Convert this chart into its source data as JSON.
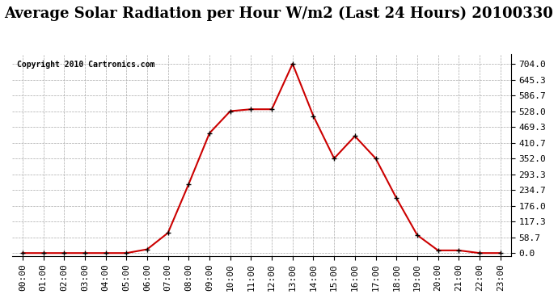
{
  "title": "Average Solar Radiation per Hour W/m2 (Last 24 Hours) 20100330",
  "copyright": "Copyright 2010 Cartronics.com",
  "hours": [
    "00:00",
    "01:00",
    "02:00",
    "03:00",
    "04:00",
    "05:00",
    "06:00",
    "07:00",
    "08:00",
    "09:00",
    "10:00",
    "11:00",
    "12:00",
    "13:00",
    "14:00",
    "15:00",
    "16:00",
    "17:00",
    "18:00",
    "19:00",
    "20:00",
    "21:00",
    "22:00",
    "23:00"
  ],
  "values": [
    0.0,
    0.0,
    0.0,
    0.0,
    0.0,
    0.0,
    14.0,
    75.0,
    257.0,
    446.0,
    528.0,
    535.0,
    535.0,
    704.0,
    510.0,
    352.0,
    435.0,
    352.0,
    204.0,
    67.0,
    10.0,
    10.0,
    0.0,
    0.0
  ],
  "line_color": "#cc0000",
  "marker_color": "#000000",
  "bg_color": "#ffffff",
  "plot_bg_color": "#ffffff",
  "grid_color": "#aaaaaa",
  "title_fontsize": 13,
  "copyright_fontsize": 7,
  "tick_fontsize": 8,
  "ytick_values": [
    0.0,
    58.7,
    117.3,
    176.0,
    234.7,
    293.3,
    352.0,
    410.7,
    469.3,
    528.0,
    586.7,
    645.3,
    704.0
  ],
  "ylim": [
    -10,
    740
  ]
}
